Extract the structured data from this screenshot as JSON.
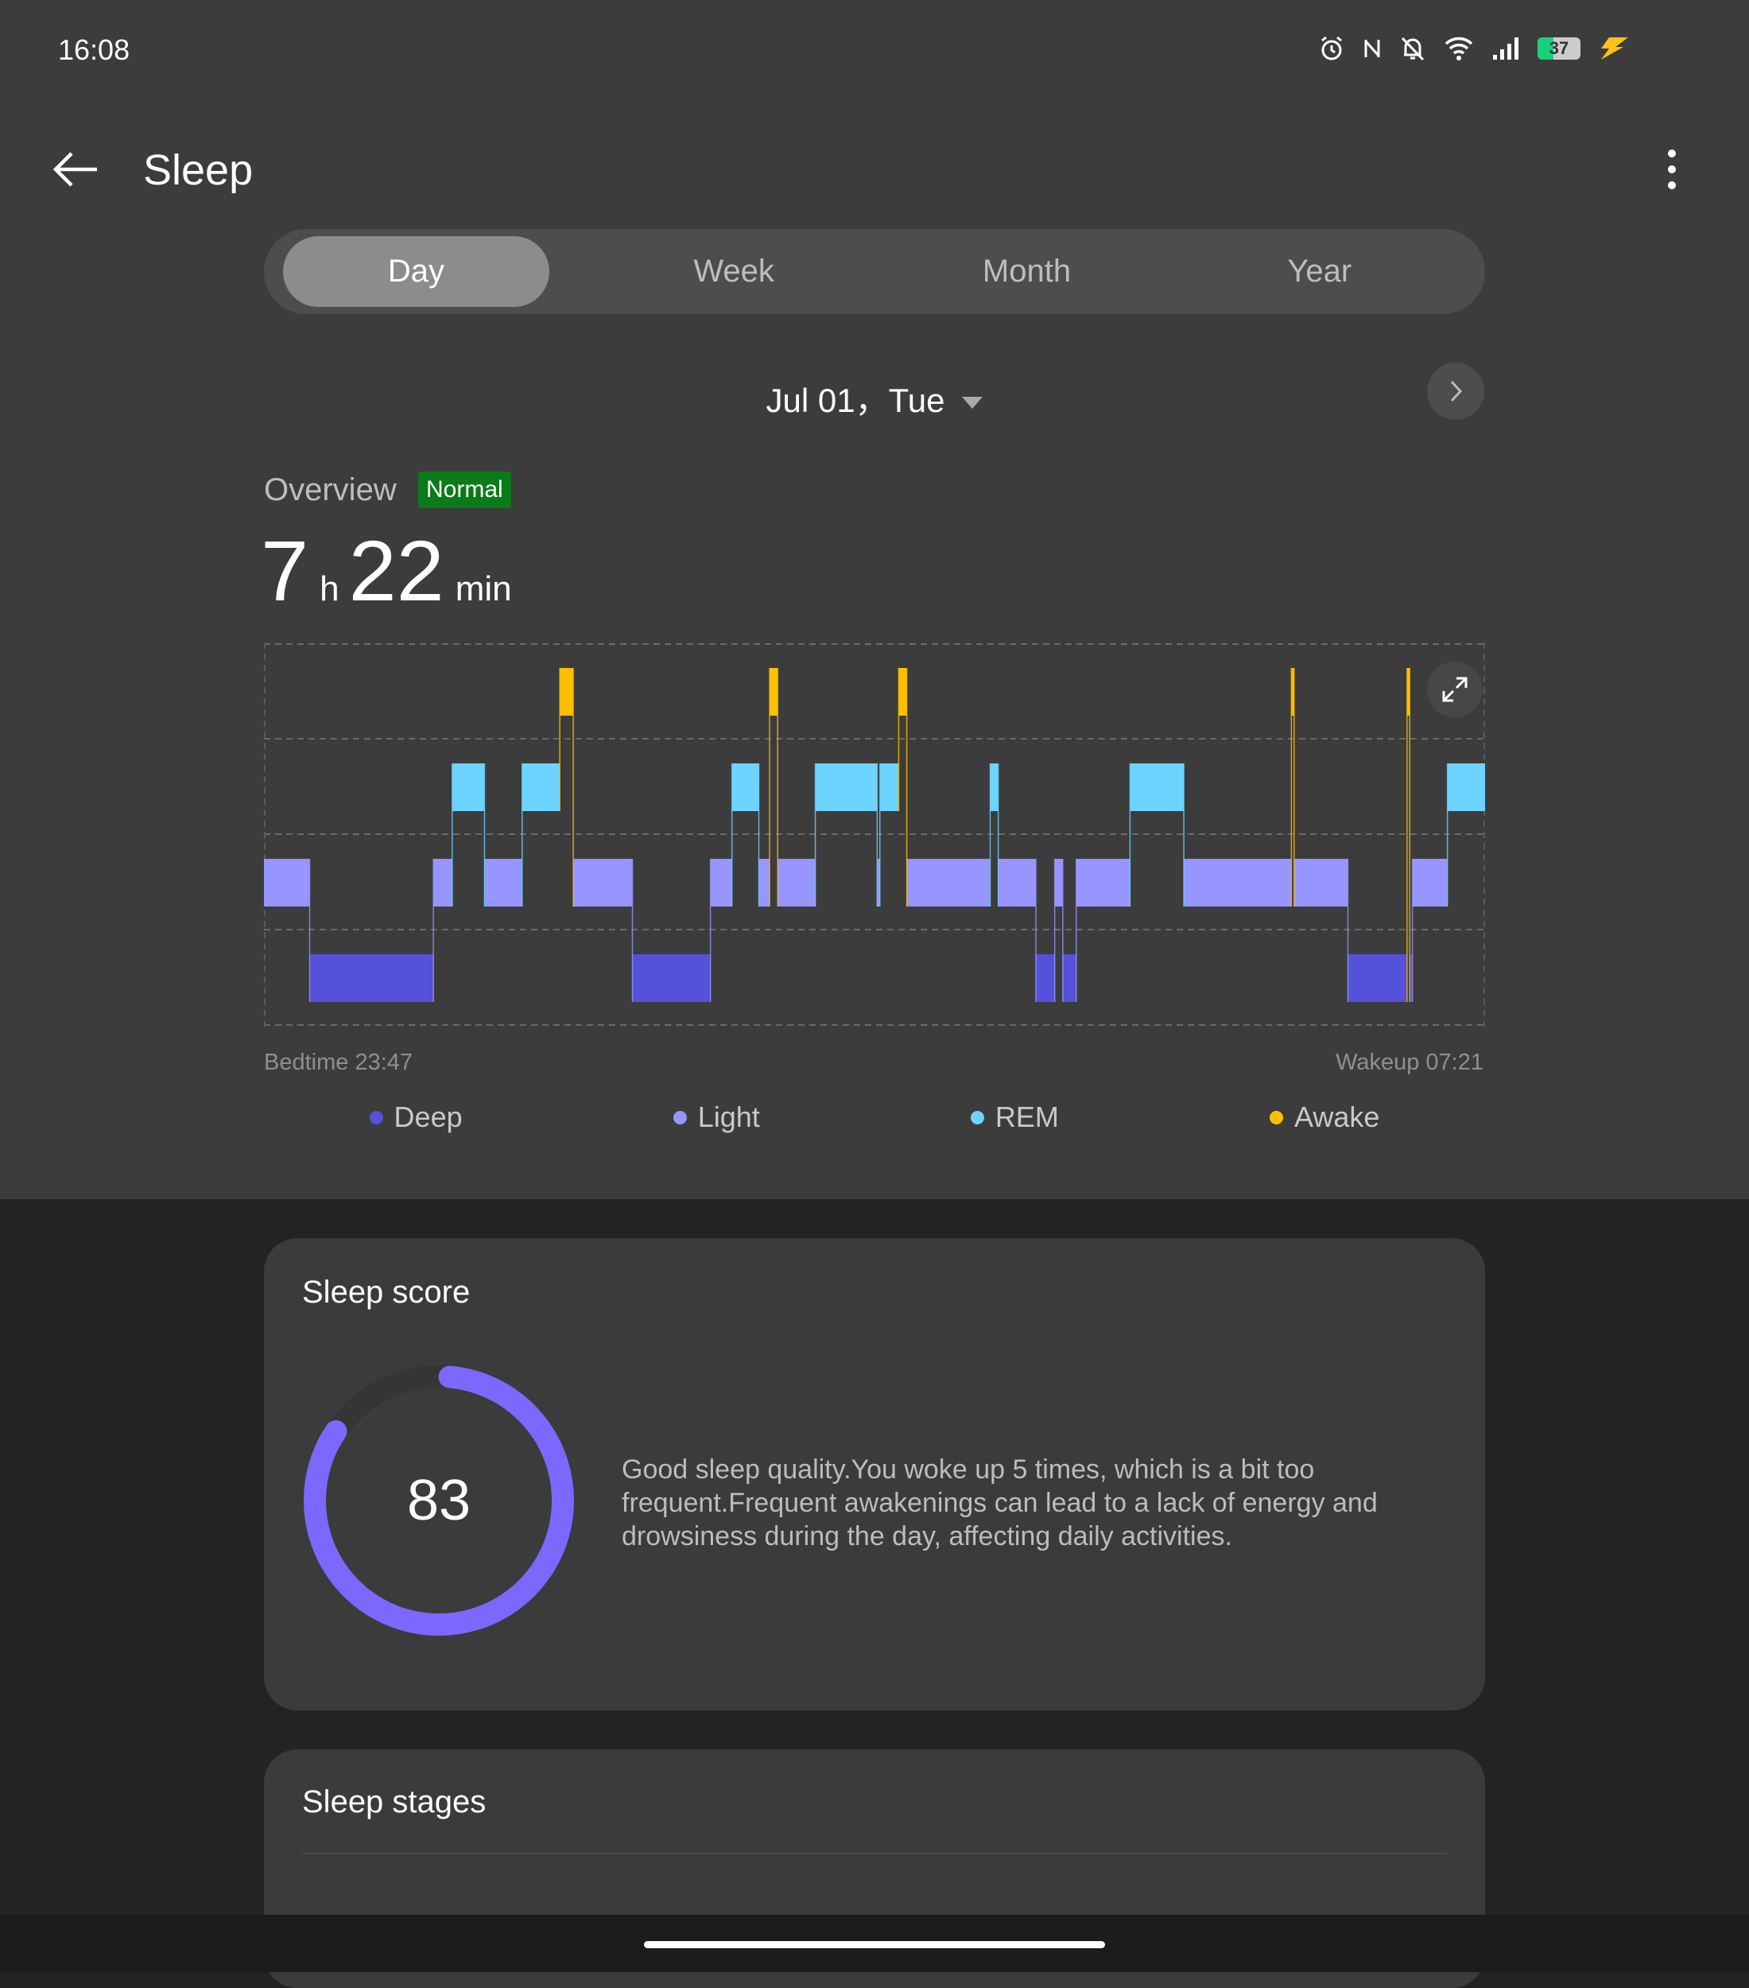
{
  "status_bar": {
    "time": "16:08",
    "battery": "37",
    "icons": [
      "alarm-icon",
      "nfc-icon",
      "bell-off-icon",
      "wifi-icon",
      "signal-icon",
      "battery-icon",
      "charging-icon"
    ]
  },
  "header": {
    "title": "Sleep"
  },
  "tabs": [
    {
      "label": "Day",
      "selected": true
    },
    {
      "label": "Week"
    },
    {
      "label": "Month"
    },
    {
      "label": "Year"
    }
  ],
  "date": {
    "label": "Jul 01，Tue"
  },
  "overview": {
    "label": "Overview",
    "badge": "Normal",
    "hours": "7",
    "hours_unit": "h",
    "minutes": "22",
    "minutes_unit": "min"
  },
  "chart_data": {
    "type": "timeline",
    "start_label": "Bedtime 23:47",
    "end_label": "Wakeup 07:21",
    "total_minutes": 454,
    "levels": [
      "Awake",
      "REM",
      "Light",
      "Deep"
    ],
    "colors": {
      "Deep": "#5551d8",
      "Light": "#9795ff",
      "REM": "#6dd3ff",
      "Awake": "#ffbf00"
    },
    "segments": [
      [
        "Light",
        0,
        17
      ],
      [
        "Deep",
        17,
        63
      ],
      [
        "Light",
        63,
        70
      ],
      [
        "REM",
        70,
        82
      ],
      [
        "Light",
        82,
        96
      ],
      [
        "REM",
        96,
        110
      ],
      [
        "Awake",
        110,
        115
      ],
      [
        "Light",
        115,
        137
      ],
      [
        "Deep",
        137,
        166
      ],
      [
        "Light",
        166,
        174
      ],
      [
        "REM",
        174,
        184
      ],
      [
        "Light",
        184,
        188
      ],
      [
        "Awake",
        188,
        191
      ],
      [
        "Light",
        191,
        205
      ],
      [
        "REM",
        205,
        228
      ],
      [
        "Light",
        228,
        229
      ],
      [
        "REM",
        229,
        236
      ],
      [
        "Awake",
        236,
        239
      ],
      [
        "Light",
        239,
        270
      ],
      [
        "REM",
        270,
        273
      ],
      [
        "Light",
        273,
        287
      ],
      [
        "Deep",
        287,
        294
      ],
      [
        "Light",
        294,
        297
      ],
      [
        "Deep",
        297,
        302
      ],
      [
        "Light",
        302,
        322
      ],
      [
        "REM",
        322,
        342
      ],
      [
        "Light",
        342,
        382
      ],
      [
        "Awake",
        382,
        383
      ],
      [
        "Light",
        383,
        403
      ],
      [
        "Deep",
        403,
        425
      ],
      [
        "Awake",
        425,
        426
      ],
      [
        "Deep",
        426,
        427
      ],
      [
        "Light",
        427,
        440
      ],
      [
        "REM",
        440,
        454
      ]
    ],
    "legend": [
      "Deep",
      "Light",
      "REM",
      "Awake"
    ]
  },
  "sleep_score": {
    "title": "Sleep score",
    "score": "83",
    "value": 83,
    "description": "Good sleep quality.You woke up 5 times, which is a bit too frequent.Frequent awakenings can lead to a lack of energy and drowsiness during the day, affecting daily activities.",
    "color": "#7b68ff"
  },
  "sleep_stages": {
    "title": "Sleep stages"
  }
}
